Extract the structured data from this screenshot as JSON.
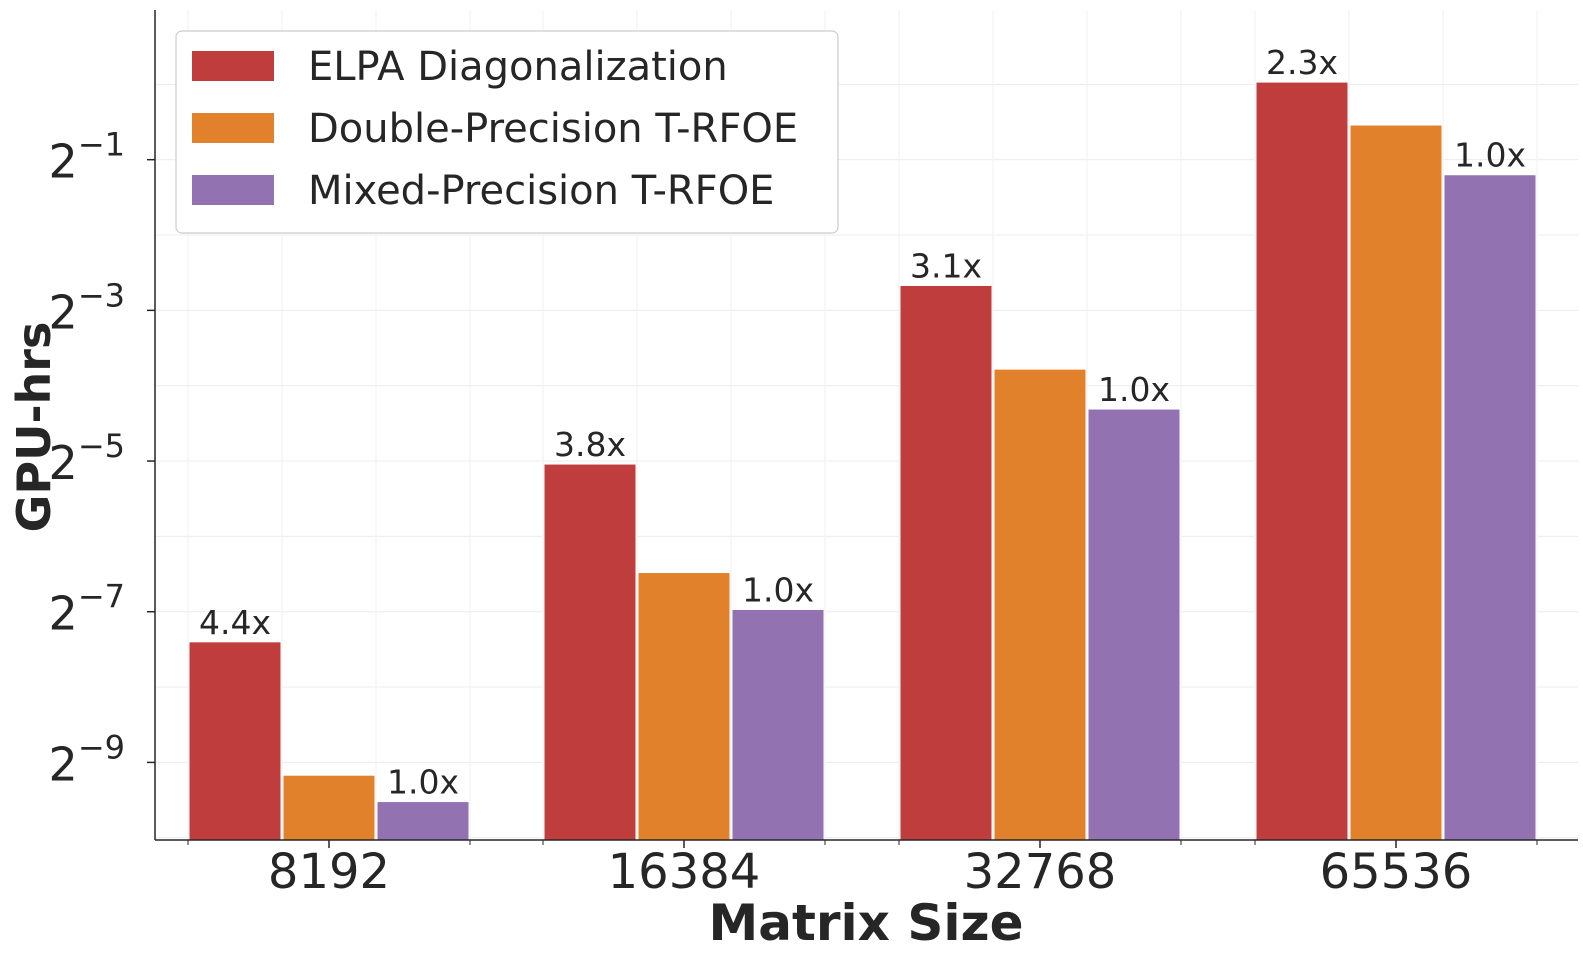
{
  "chart_data": {
    "type": "bar",
    "scale": "log2",
    "categories": [
      "8192",
      "16384",
      "32768",
      "65536"
    ],
    "series": [
      {
        "name": "ELPA Diagonalization",
        "color": "#c03d3e",
        "log2_values": [
          -7.4,
          -5.04,
          -2.67,
          0.03
        ]
      },
      {
        "name": "Double-Precision T-RFOE",
        "color": "#e1812c",
        "log2_values": [
          -9.17,
          -6.48,
          -3.78,
          -0.54
        ]
      },
      {
        "name": "Mixed-Precision T-RFOE",
        "color": "#9372b2",
        "log2_values": [
          -9.52,
          -6.97,
          -4.31,
          -1.2
        ]
      }
    ],
    "speedup_labels": [
      {
        "elpa": "4.4x",
        "mixed": "1.0x"
      },
      {
        "elpa": "3.8x",
        "mixed": "1.0x"
      },
      {
        "elpa": "3.1x",
        "mixed": "1.0x"
      },
      {
        "elpa": "2.3x",
        "mixed": "1.0x"
      }
    ],
    "yticks": [
      {
        "exp": -9,
        "base": "2",
        "sup": "−9"
      },
      {
        "exp": -7,
        "base": "2",
        "sup": "−7"
      },
      {
        "exp": -5,
        "base": "2",
        "sup": "−5"
      },
      {
        "exp": -3,
        "base": "2",
        "sup": "−3"
      },
      {
        "exp": -1,
        "base": "2",
        "sup": "−1"
      }
    ],
    "ylim_log2": [
      -10.03,
      1.0
    ],
    "xlabel": "Matrix Size",
    "ylabel": "GPU-hrs",
    "legend_position": "top-left",
    "grid": true
  }
}
